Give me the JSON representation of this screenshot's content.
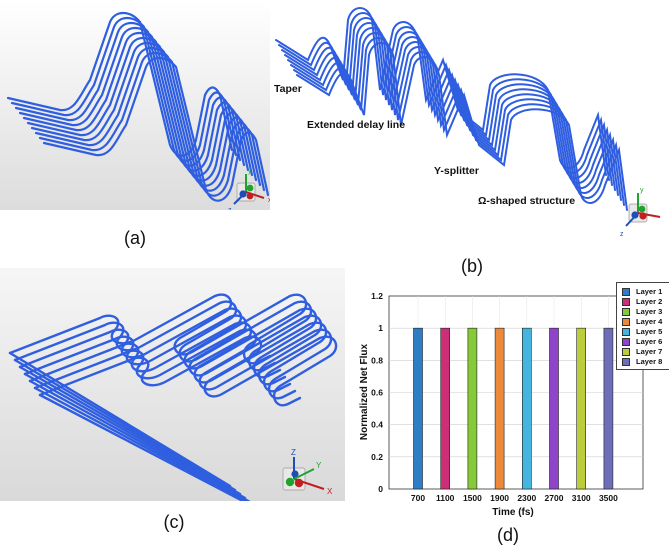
{
  "captions": {
    "a": "(a)",
    "b": "(b)",
    "c": "(c)",
    "d": "(d)"
  },
  "annotations_b": {
    "taper": "Taper",
    "delay": "Extended delay line",
    "splitter": "Y-splitter",
    "omega": "Ω-shaped structure"
  },
  "axis_triad": {
    "x": "x",
    "y": "y",
    "z": "z",
    "x_upper": "X",
    "y_upper": "Y",
    "z_upper": "Z"
  },
  "colors": {
    "waveguide": "#2f5fe0",
    "render_bg_top": "#f7f7f7",
    "render_bg_bottom": "#dedede"
  },
  "chart_data": {
    "type": "bar",
    "categories": [
      "700",
      "1100",
      "1500",
      "1900",
      "2300",
      "2700",
      "3100",
      "3500"
    ],
    "values": [
      1,
      1,
      1,
      1,
      1,
      1,
      1,
      1
    ],
    "colors": [
      "#2f7dc4",
      "#cc2f75",
      "#86c93a",
      "#ec8a3a",
      "#45b5df",
      "#8f45c9",
      "#bccc3a",
      "#6d6db8"
    ],
    "legend": [
      "Layer 1",
      "Layer 2",
      "Layer 3",
      "Layer 4",
      "Layer 5",
      "Layer 6",
      "Layer 7",
      "Layer 8"
    ],
    "xlabel": "Time (fs)",
    "ylabel": "Normalized Net Flux",
    "ylim": [
      0,
      1.2
    ],
    "yticks": [
      "0",
      "0.2",
      "0.4",
      "0.6",
      "0.8",
      "1",
      "1.2"
    ],
    "grid": true,
    "legend_position": "top-right"
  }
}
